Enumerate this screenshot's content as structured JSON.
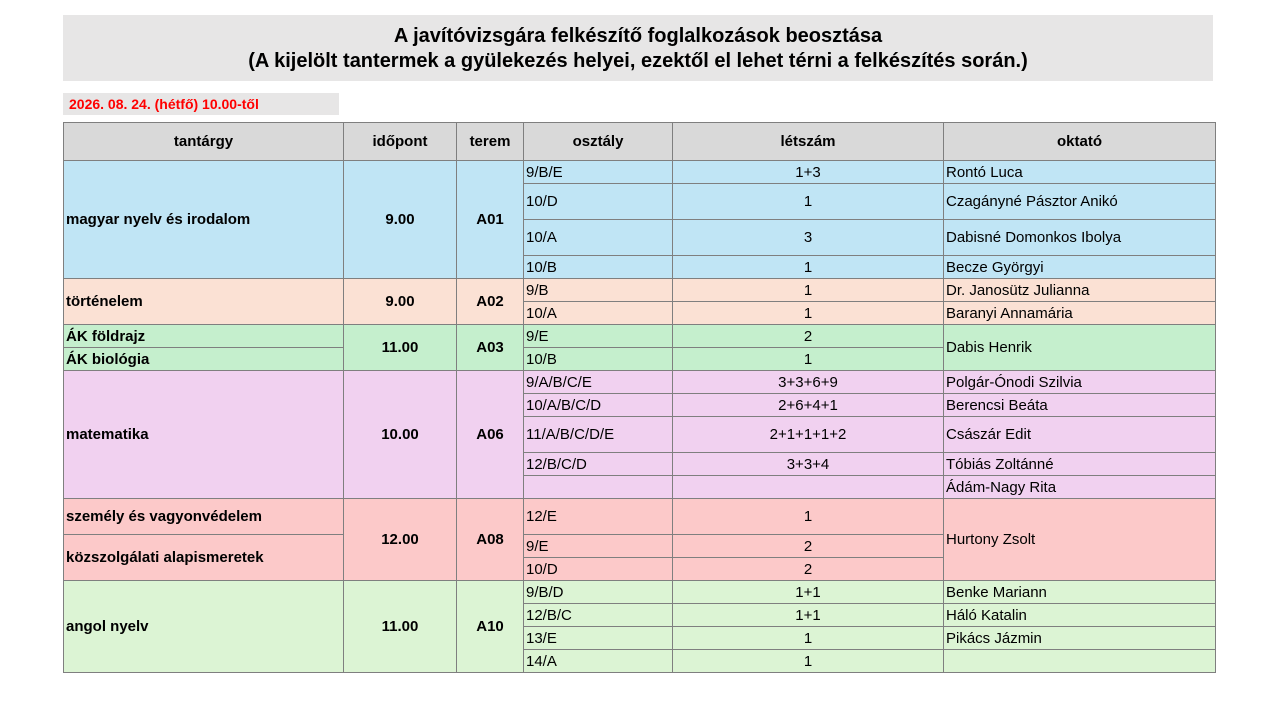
{
  "title": {
    "line1": "A javítóvizsgára felkészítő foglalkozások beosztása",
    "line2": "(A kijelölt tantermek a gyülekezés helyei, ezektől el lehet térni a felkészítés során.)"
  },
  "date_label": "2026. 08. 24. (hétfő) 10.00-től",
  "headers": {
    "subject": "tantárgy",
    "time": "időpont",
    "room": "terem",
    "class": "osztály",
    "count": "létszám",
    "teacher": "oktató"
  },
  "groups": {
    "magyar": {
      "subject": "magyar nyelv és irodalom",
      "time": "9.00",
      "room": "A01",
      "rows": [
        {
          "class": "9/B/E",
          "count": "1+3",
          "teacher": "Rontó Luca"
        },
        {
          "class": "10/D",
          "count": "1",
          "teacher": "Czagányné Pásztor Anikó"
        },
        {
          "class": "10/A",
          "count": "3",
          "teacher": "Dabisné Domonkos Ibolya"
        },
        {
          "class": "10/B",
          "count": "1",
          "teacher": "Becze Györgyi"
        }
      ]
    },
    "tortenelem": {
      "subject": "történelem",
      "time": "9.00",
      "room": "A02",
      "rows": [
        {
          "class": "9/B",
          "count": "1",
          "teacher": "Dr. Janosütz Julianna"
        },
        {
          "class": "10/A",
          "count": "1",
          "teacher": "Baranyi Annamária"
        }
      ]
    },
    "ak": {
      "subject1": "ÁK földrajz",
      "subject2": "ÁK biológia",
      "time": "11.00",
      "room": "A03",
      "teacher": "Dabis Henrik",
      "rows": [
        {
          "class": "9/E",
          "count": "2"
        },
        {
          "class": "10/B",
          "count": "1"
        }
      ]
    },
    "matek": {
      "subject": "matematika",
      "time": "10.00",
      "room": "A06",
      "rows": [
        {
          "class": "9/A/B/C/E",
          "count": "3+3+6+9",
          "teacher": "Polgár-Ónodi Szilvia"
        },
        {
          "class": "10/A/B/C/D",
          "count": "2+6+4+1",
          "teacher": "Berencsi Beáta"
        },
        {
          "class": "11/A/B/C/D/E",
          "count": "2+1+1+1+2",
          "teacher": "Császár Edit"
        },
        {
          "class": "12/B/C/D",
          "count": "3+3+4",
          "teacher": "Tóbiás Zoltánné"
        },
        {
          "class": "",
          "count": "",
          "teacher": "Ádám-Nagy Rita"
        }
      ]
    },
    "szemely": {
      "subject1": "személy és vagyonvédelem",
      "subject2": "közszolgálati alapismeretek",
      "time": "12.00",
      "room": "A08",
      "teacher": "Hurtony Zsolt",
      "rows": [
        {
          "class": "12/E",
          "count": "1"
        },
        {
          "class": "9/E",
          "count": "2"
        },
        {
          "class": "10/D",
          "count": "2"
        }
      ]
    },
    "angol": {
      "subject": "angol nyelv",
      "time": "11.00",
      "room": "A10",
      "rows": [
        {
          "class": "9/B/D",
          "count": "1+1",
          "teacher": "Benke Mariann"
        },
        {
          "class": "12/B/C",
          "count": "1+1",
          "teacher": "Háló Katalin"
        },
        {
          "class": "13/E",
          "count": "1",
          "teacher": "Pikács Jázmin"
        },
        {
          "class": "14/A",
          "count": "1",
          "teacher": ""
        }
      ]
    }
  }
}
